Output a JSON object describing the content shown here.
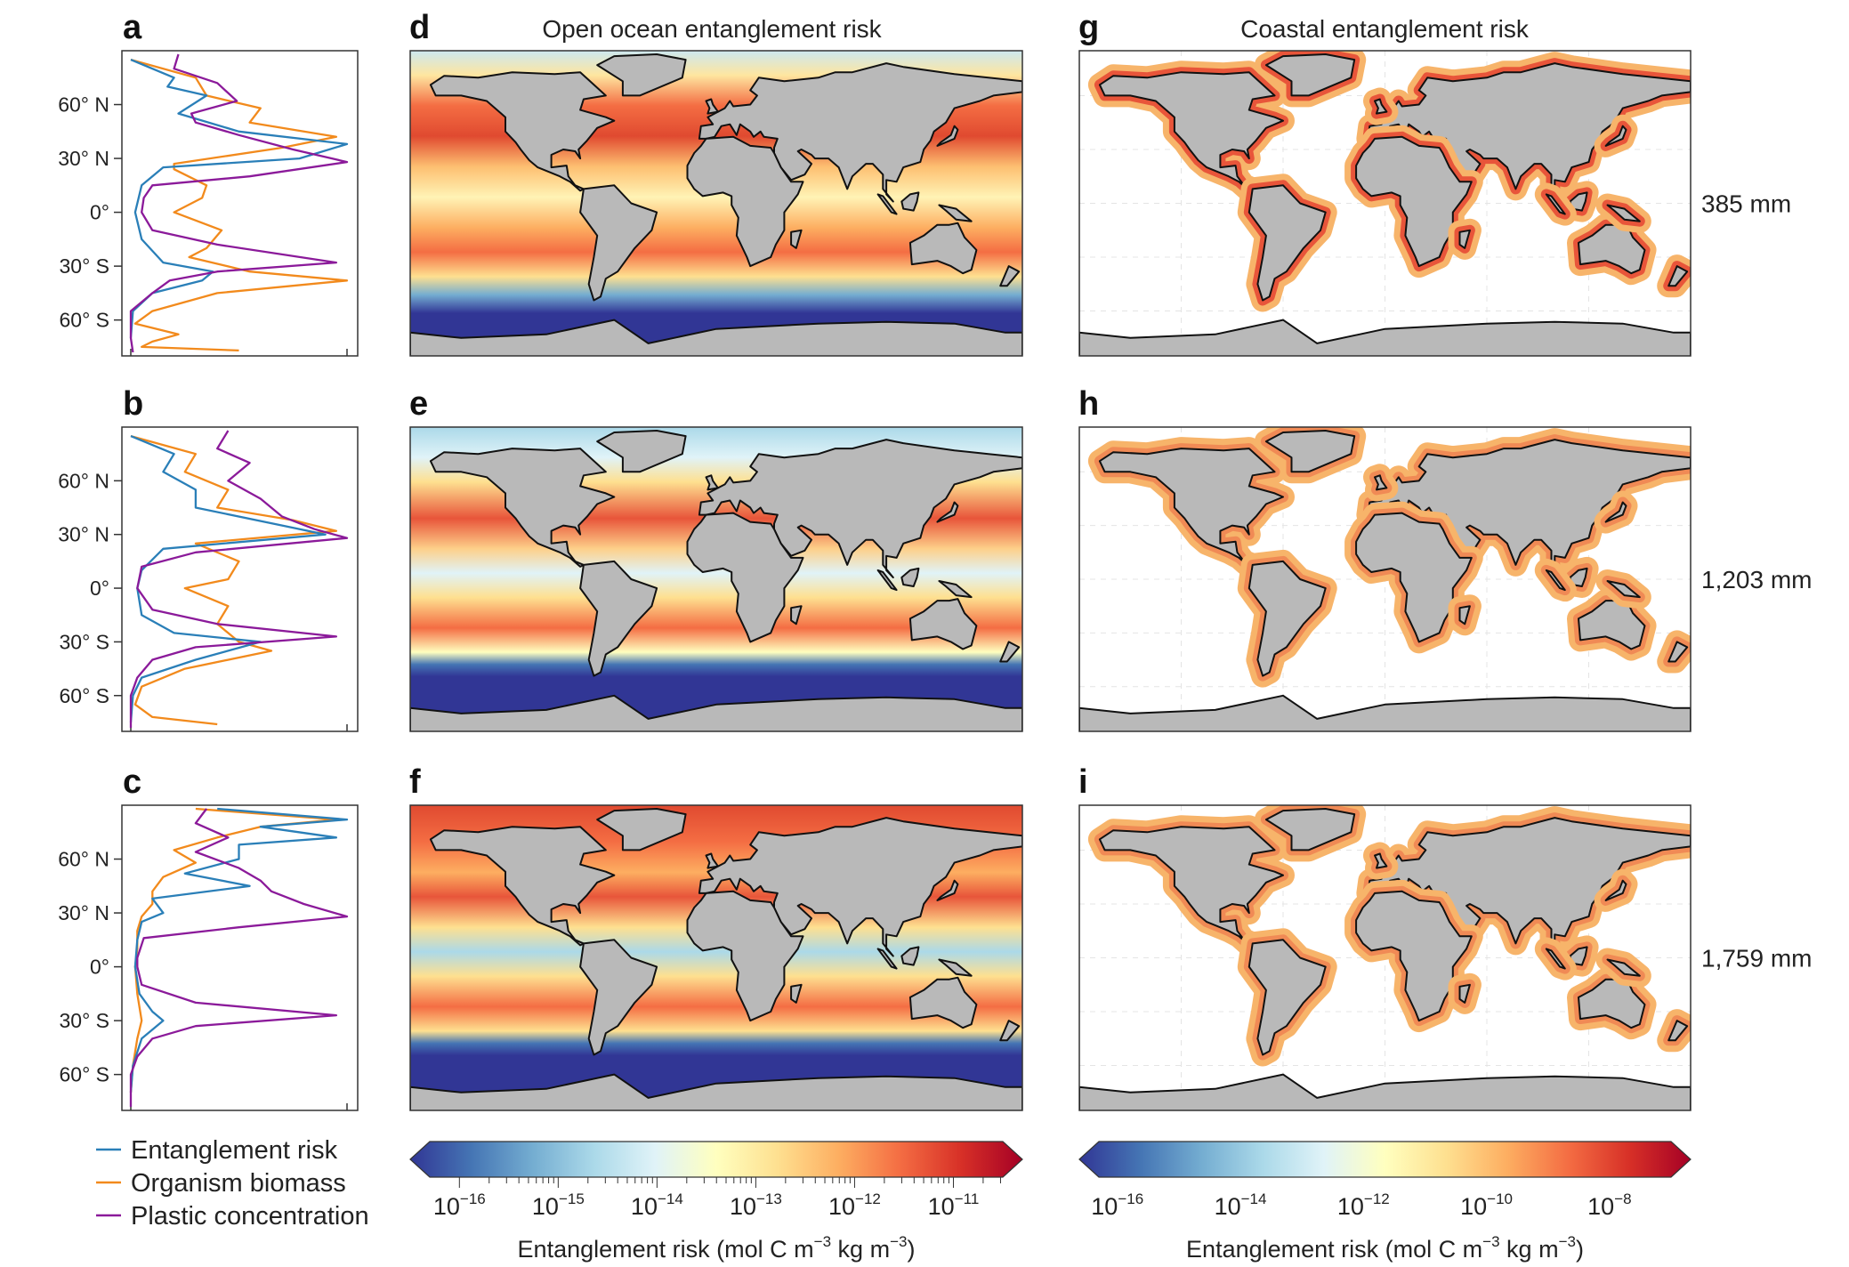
{
  "colors": {
    "entanglement": "#2a7fb8",
    "biomass": "#f28a1c",
    "plastic": "#8b1a9a",
    "land": "#b9b9b9",
    "colormap": [
      "#313695",
      "#4575b4",
      "#74add1",
      "#abd9e9",
      "#e0f3f8",
      "#ffffbf",
      "#fee090",
      "#fdae61",
      "#f46d43",
      "#d73027",
      "#a50026"
    ]
  },
  "titles": {
    "open": "Open ocean entanglement risk",
    "coastal": "Coastal entanglement risk"
  },
  "rows": [
    {
      "label": "385 mm",
      "letters": [
        "a",
        "d",
        "g"
      ]
    },
    {
      "label": "1,203 mm",
      "letters": [
        "b",
        "e",
        "h"
      ]
    },
    {
      "label": "1,759 mm",
      "letters": [
        "c",
        "f",
        "i"
      ]
    }
  ],
  "legend": [
    {
      "label": "Entanglement risk",
      "color": "#2a7fb8"
    },
    {
      "label": "Organism biomass",
      "color": "#f28a1c"
    },
    {
      "label": "Plastic concentration",
      "color": "#8b1a9a"
    }
  ],
  "colorbars": [
    {
      "label": {
        "pre": "Entanglement risk (mol C m",
        "e1": "−3",
        "mid": " kg m",
        "e2": "−3",
        "post": ")"
      },
      "ticks": [
        {
          "base": "10",
          "exp": "−16"
        },
        {
          "base": "10",
          "exp": "−15"
        },
        {
          "base": "10",
          "exp": "−14"
        },
        {
          "base": "10",
          "exp": "−13"
        },
        {
          "base": "10",
          "exp": "−12"
        },
        {
          "base": "10",
          "exp": "−11"
        }
      ],
      "scale": "log",
      "range": [
        -16.3,
        -10.5
      ],
      "extend": "both"
    },
    {
      "label": {
        "pre": "Entanglement risk (mol C m",
        "e1": "−3",
        "mid": " kg m",
        "e2": "−3",
        "post": ")"
      },
      "ticks": [
        {
          "base": "10",
          "exp": "−16"
        },
        {
          "base": "10",
          "exp": "−14"
        },
        {
          "base": "10",
          "exp": "−12"
        },
        {
          "base": "10",
          "exp": "−10"
        },
        {
          "base": "10",
          "exp": "−8"
        }
      ],
      "scale": "log",
      "range": [
        -16.3,
        -7.0
      ],
      "extend": "both"
    }
  ],
  "chart_data": [
    {
      "type": "line",
      "panel": "a",
      "ylim": [
        -80,
        90
      ],
      "xlim": [
        0,
        1
      ],
      "yticks": [
        "60° N",
        "30° N",
        "0°",
        "30° S",
        "60° S"
      ],
      "ytick_values": [
        60,
        30,
        0,
        -30,
        -60
      ],
      "series": [
        {
          "name": "Entanglement risk",
          "lat": [
            85,
            75,
            70,
            65,
            55,
            45,
            38,
            30,
            25,
            15,
            0,
            -15,
            -28,
            -33,
            -38,
            -45,
            -55,
            -70
          ],
          "values": [
            0,
            0.2,
            0.17,
            0.35,
            0.22,
            0.5,
            1.0,
            0.78,
            0.15,
            0.05,
            0.02,
            0.05,
            0.15,
            0.38,
            0.33,
            0.1,
            0.01,
            0
          ]
        },
        {
          "name": "Organism biomass",
          "lat": [
            85,
            75,
            65,
            58,
            50,
            42,
            36,
            27,
            24,
            15,
            8,
            0,
            -10,
            -20,
            -25,
            -33,
            -38,
            -45,
            -55,
            -62,
            -68,
            -72,
            -75,
            -77
          ],
          "values": [
            0,
            0.3,
            0.35,
            0.6,
            0.55,
            0.95,
            0.7,
            0.2,
            0.2,
            0.35,
            0.33,
            0.2,
            0.42,
            0.35,
            0.27,
            0.55,
            1.0,
            0.4,
            0.1,
            0.02,
            0.22,
            0.1,
            0.05,
            0.5
          ]
        },
        {
          "name": "Plastic concentration",
          "lat": [
            88,
            80,
            72,
            62,
            55,
            50,
            43,
            35,
            28,
            20,
            15,
            8,
            0,
            -10,
            -18,
            -28,
            -33,
            -38,
            -45,
            -55,
            -70,
            -78
          ],
          "values": [
            0.22,
            0.2,
            0.4,
            0.49,
            0.28,
            0.3,
            0.5,
            0.75,
            1.0,
            0.55,
            0.1,
            0.06,
            0.05,
            0.1,
            0.4,
            0.95,
            0.4,
            0.18,
            0.1,
            0,
            0,
            0.01
          ]
        }
      ]
    },
    {
      "type": "line",
      "panel": "b",
      "ylim": [
        -80,
        90
      ],
      "xlim": [
        0,
        1
      ],
      "yticks": [
        "60° N",
        "30° N",
        "0°",
        "30° S",
        "60° S"
      ],
      "ytick_values": [
        60,
        30,
        0,
        -30,
        -60
      ],
      "series": [
        {
          "name": "Entanglement risk",
          "lat": [
            85,
            75,
            65,
            55,
            45,
            35,
            30,
            22,
            10,
            0,
            -15,
            -25,
            -30,
            -40,
            -50,
            -60,
            -75
          ],
          "values": [
            0,
            0.2,
            0.15,
            0.3,
            0.3,
            0.7,
            0.9,
            0.15,
            0.05,
            0.03,
            0.05,
            0.2,
            0.6,
            0.3,
            0.05,
            0.01,
            0
          ]
        },
        {
          "name": "Organism biomass",
          "lat": [
            85,
            75,
            65,
            55,
            45,
            38,
            32,
            25,
            15,
            5,
            0,
            -10,
            -20,
            -30,
            -35,
            -45,
            -55,
            -65,
            -72,
            -76
          ],
          "values": [
            0,
            0.3,
            0.25,
            0.45,
            0.4,
            0.75,
            0.95,
            0.3,
            0.5,
            0.45,
            0.25,
            0.45,
            0.4,
            0.5,
            0.65,
            0.25,
            0.05,
            0.02,
            0.1,
            0.4
          ]
        },
        {
          "name": "Plastic concentration",
          "lat": [
            88,
            78,
            70,
            60,
            50,
            40,
            33,
            28,
            20,
            12,
            0,
            -12,
            -20,
            -27,
            -33,
            -40,
            -50,
            -60,
            -78
          ],
          "values": [
            0.45,
            0.4,
            0.55,
            0.45,
            0.6,
            0.7,
            0.85,
            1.0,
            0.3,
            0.05,
            0.03,
            0.1,
            0.4,
            0.95,
            0.3,
            0.1,
            0.03,
            0,
            0
          ]
        }
      ]
    },
    {
      "type": "line",
      "panel": "c",
      "ylim": [
        -80,
        90
      ],
      "xlim": [
        0,
        1
      ],
      "yticks": [
        "60° N",
        "30° N",
        "0°",
        "30° S",
        "60° S"
      ],
      "ytick_values": [
        60,
        30,
        0,
        -30,
        -60
      ],
      "series": [
        {
          "name": "Entanglement risk",
          "lat": [
            88,
            82,
            78,
            72,
            68,
            60,
            52,
            45,
            38,
            30,
            25,
            15,
            0,
            -15,
            -25,
            -30,
            -40,
            -55,
            -70
          ],
          "values": [
            0.4,
            1.0,
            0.6,
            0.95,
            0.5,
            0.5,
            0.25,
            0.55,
            0.1,
            0.15,
            0.05,
            0.03,
            0.02,
            0.04,
            0.1,
            0.15,
            0.05,
            0.01,
            0
          ]
        },
        {
          "name": "Organism biomass",
          "lat": [
            88,
            82,
            78,
            72,
            65,
            58,
            50,
            42,
            35,
            28,
            20,
            10,
            0,
            -15,
            -30,
            -40,
            -55,
            -70
          ],
          "values": [
            0.3,
            0.95,
            0.6,
            0.4,
            0.2,
            0.3,
            0.15,
            0.1,
            0.1,
            0.05,
            0.03,
            0.03,
            0.02,
            0.03,
            0.05,
            0.03,
            0.01,
            0
          ]
        },
        {
          "name": "Plastic concentration",
          "lat": [
            88,
            80,
            72,
            64,
            55,
            48,
            42,
            35,
            28,
            22,
            16,
            5,
            0,
            -10,
            -20,
            -27,
            -33,
            -40,
            -50,
            -60,
            -78
          ],
          "values": [
            0.35,
            0.3,
            0.45,
            0.3,
            0.5,
            0.6,
            0.65,
            0.8,
            1.0,
            0.5,
            0.06,
            0.03,
            0.03,
            0.05,
            0.3,
            0.95,
            0.3,
            0.1,
            0.03,
            0,
            0
          ]
        }
      ]
    }
  ]
}
